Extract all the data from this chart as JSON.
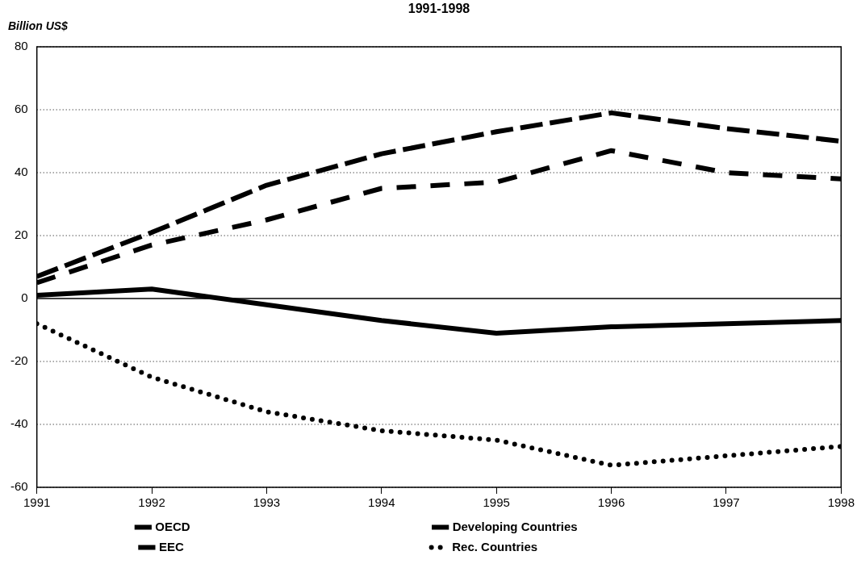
{
  "chart_data": {
    "type": "line",
    "title": "1991-1998",
    "ylabel": "Billion US$",
    "x": [
      1991,
      1992,
      1993,
      1994,
      1995,
      1996,
      1997,
      1998
    ],
    "xlim": [
      1991,
      1998
    ],
    "xticks": [
      1991,
      1992,
      1993,
      1994,
      1995,
      1996,
      1997,
      1998
    ],
    "ylim": [
      -60,
      80
    ],
    "yticks": [
      -60,
      -40,
      -20,
      0,
      20,
      40,
      60,
      80
    ],
    "grid": "y",
    "legend": "bottom",
    "marker": "none",
    "series": [
      {
        "name": "OECD",
        "color": "#000000",
        "line_style": "dashed",
        "values": [
          7,
          21,
          36,
          46,
          53,
          59,
          54,
          50
        ]
      },
      {
        "name": "Developing Countries",
        "color": "#000000",
        "line_style": "solid",
        "values": [
          1,
          3,
          -2,
          -7,
          -11,
          -9,
          -8,
          -7
        ]
      },
      {
        "name": "EEC",
        "color": "#000000",
        "line_style": "dashdot",
        "values": [
          5,
          17,
          25,
          35,
          37,
          47,
          40,
          38
        ]
      },
      {
        "name": "Rec. Countries",
        "color": "#000000",
        "line_style": "dotted",
        "values": [
          -8,
          -25,
          -36,
          -42,
          -45,
          -53,
          -50,
          -47
        ]
      }
    ]
  }
}
